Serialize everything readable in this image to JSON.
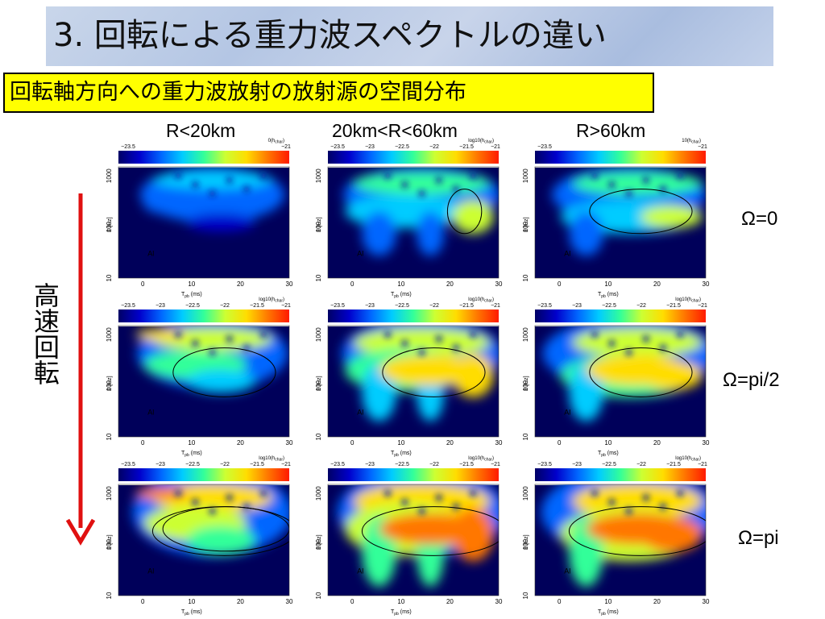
{
  "header": {
    "title": "3. 回転による重力波スペクトルの違い",
    "subtitle": "回転軸方向への重力波放射の放射源の空間分布"
  },
  "columns": [
    "R<20km",
    "20km<R<60km",
    "R>60km"
  ],
  "rows": [
    "Ω=0",
    "Ω=pi/2",
    "Ω=pi"
  ],
  "arrow": {
    "label": "高速回転",
    "color": "#e01010"
  },
  "colorbar": {
    "ticks": [
      "−23.5",
      "−23",
      "−22.5",
      "−22",
      "−21.5",
      "−21"
    ],
    "label_full": "log10(h",
    "label_sub": "char",
    "label_end": ")",
    "row1_col1_label": "0(h",
    "row1_col3_label": "10(h",
    "colors": [
      "#000066",
      "#0000cc",
      "#0066ff",
      "#00ccff",
      "#33ff99",
      "#ccff33",
      "#ffdd00",
      "#ff7700",
      "#ff1a00"
    ]
  },
  "panel": {
    "ylabel": "F [Hz]",
    "yticks": [
      "10",
      "100",
      "1000"
    ],
    "xticks": [
      "0",
      "10",
      "20",
      "30"
    ],
    "xlabel_main": "T",
    "xlabel_sub": "pb",
    "xlabel_unit": "(ms)",
    "tag": "Al"
  },
  "chart_data": {
    "type": "heatmap",
    "x": {
      "label": "T_pb (ms)",
      "range": [
        -5,
        30
      ],
      "ticks": [
        0,
        10,
        20,
        30
      ]
    },
    "y": {
      "label": "F [Hz]",
      "scale": "log",
      "range": [
        10,
        1500
      ],
      "ticks": [
        10,
        100,
        1000
      ]
    },
    "color_scale": {
      "label": "log10(h_char)",
      "range": [
        -23.5,
        -21
      ]
    },
    "panels": [
      {
        "row": "Ω=0",
        "column": "R<20km",
        "intensity": 0.35
      },
      {
        "row": "Ω=0",
        "column": "20km<R<60km",
        "intensity": 0.55
      },
      {
        "row": "Ω=0",
        "column": "R>60km",
        "intensity": 0.5
      },
      {
        "row": "Ω=pi/2",
        "column": "R<20km",
        "intensity": 0.45
      },
      {
        "row": "Ω=pi/2",
        "column": "20km<R<60km",
        "intensity": 0.6
      },
      {
        "row": "Ω=pi/2",
        "column": "R>60km",
        "intensity": 0.8
      },
      {
        "row": "Ω=pi",
        "column": "R<20km",
        "intensity": 0.6
      },
      {
        "row": "Ω=pi",
        "column": "20km<R<60km",
        "intensity": 0.75
      },
      {
        "row": "Ω=pi",
        "column": "R>60km",
        "intensity": 0.85
      }
    ]
  }
}
